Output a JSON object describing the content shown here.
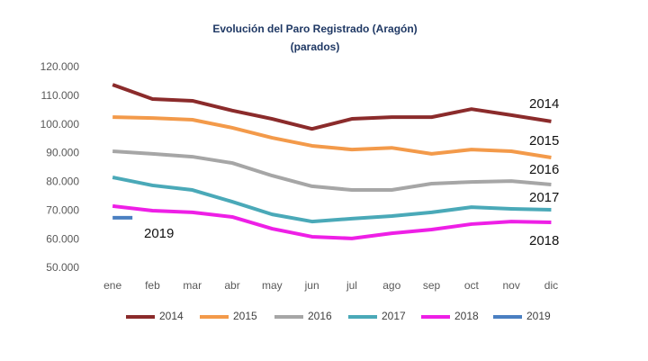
{
  "chart_data": {
    "type": "line",
    "title": "Evolución del Paro Registrado (Aragón)",
    "subtitle": "(parados)",
    "categories": [
      "ene",
      "feb",
      "mar",
      "abr",
      "may",
      "jun",
      "jul",
      "ago",
      "sep",
      "oct",
      "nov",
      "dic"
    ],
    "series": [
      {
        "name": "2014",
        "color": "#8b2b2b",
        "values": [
          114000,
          109000,
          108400,
          105000,
          102100,
          98600,
          102100,
          102700,
          102700,
          105500,
          103400,
          101200
        ]
      },
      {
        "name": "2015",
        "color": "#f39a4a",
        "values": [
          102700,
          102400,
          101800,
          99000,
          95500,
          92700,
          91400,
          92000,
          89900,
          91400,
          90800,
          88600
        ]
      },
      {
        "name": "2016",
        "color": "#a6a6a6",
        "values": [
          90800,
          89900,
          88900,
          86700,
          82300,
          78600,
          77300,
          77300,
          79500,
          80100,
          80400,
          79200
        ]
      },
      {
        "name": "2017",
        "color": "#4aa9b8",
        "values": [
          81700,
          78900,
          77300,
          73200,
          68800,
          66300,
          67300,
          68200,
          69500,
          71300,
          70700,
          70400
        ]
      },
      {
        "name": "2018",
        "color": "#ee1fe6",
        "values": [
          71700,
          70100,
          69500,
          67900,
          63800,
          61000,
          60400,
          62200,
          63500,
          65400,
          66300,
          66000
        ]
      },
      {
        "name": "2019",
        "color": "#4a7fc1",
        "values": [
          67600,
          null,
          null,
          null,
          null,
          null,
          null,
          null,
          null,
          null,
          null,
          null
        ]
      }
    ],
    "ylim": [
      50000,
      120000
    ],
    "yticks": [
      {
        "value": 50000,
        "label": "50.000"
      },
      {
        "value": 60000,
        "label": "60.000"
      },
      {
        "value": 70000,
        "label": "70.000"
      },
      {
        "value": 80000,
        "label": "80.000"
      },
      {
        "value": 90000,
        "label": "90.000"
      },
      {
        "value": 100000,
        "label": "100.000"
      },
      {
        "value": 110000,
        "label": "110.000"
      },
      {
        "value": 120000,
        "label": "120.000"
      }
    ],
    "grid": false,
    "legend": "bottom"
  }
}
